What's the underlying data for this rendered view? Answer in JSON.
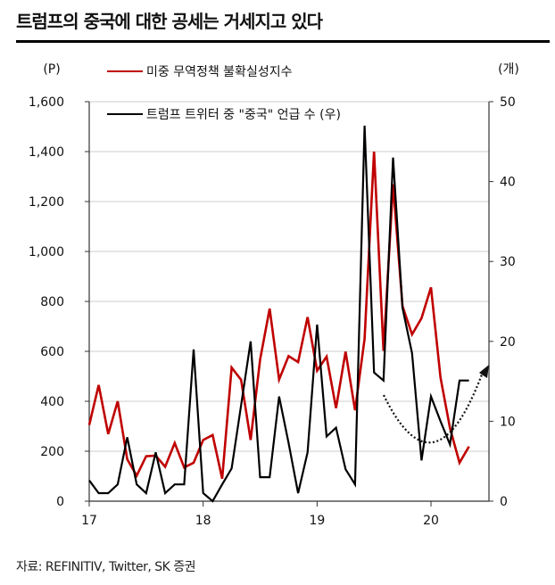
{
  "title": "트럼프의 중국에 대한 공세는 거세지고 있다",
  "source": "자료: REFINITIV, Twitter, SK 증권",
  "chart_data": {
    "type": "line",
    "title": "트럼프의 중국에 대한 공세는 거세지고 있다",
    "x": [
      "2017-01",
      "2017-02",
      "2017-03",
      "2017-04",
      "2017-05",
      "2017-06",
      "2017-07",
      "2017-08",
      "2017-09",
      "2017-10",
      "2017-11",
      "2017-12",
      "2018-01",
      "2018-02",
      "2018-03",
      "2018-04",
      "2018-05",
      "2018-06",
      "2018-07",
      "2018-08",
      "2018-09",
      "2018-10",
      "2018-11",
      "2018-12",
      "2019-01",
      "2019-02",
      "2019-03",
      "2019-04",
      "2019-05",
      "2019-06",
      "2019-07",
      "2019-08",
      "2019-09",
      "2019-10",
      "2019-11",
      "2019-12",
      "2020-01",
      "2020-02",
      "2020-03",
      "2020-04",
      "2020-05"
    ],
    "x_tick_labels": [
      "17",
      "18",
      "19",
      "20"
    ],
    "y_left": {
      "unit": "(P)",
      "ylim": [
        0,
        1600
      ],
      "ticks": [
        "0",
        "200",
        "400",
        "600",
        "800",
        "1,000",
        "1,200",
        "1,400",
        "1,600"
      ]
    },
    "y_right": {
      "unit": "(개)",
      "ylim": [
        0,
        50
      ],
      "ticks": [
        "0",
        "10",
        "20",
        "30",
        "40",
        "50"
      ]
    },
    "grid": true,
    "legend_placement": "top-left",
    "series": [
      {
        "name": "미중 무역정책 불확실성지수",
        "axis": "left",
        "color": "#c00000",
        "values": [
          305,
          465,
          269,
          400,
          168,
          102,
          180,
          182,
          138,
          233,
          135,
          154,
          245,
          265,
          90,
          535,
          486,
          245,
          567,
          771,
          487,
          581,
          557,
          737,
          523,
          579,
          373,
          599,
          364,
          650,
          1400,
          602,
          1269,
          781,
          668,
          733,
          856,
          495,
          293,
          154,
          219
        ]
      },
      {
        "name": "트럼프 트위터 중 \"중국\" 언급 수 (우)",
        "axis": "right",
        "color": "#000000",
        "values": [
          2.6,
          1,
          1,
          2.1,
          8,
          2.1,
          1,
          6.1,
          1,
          2.1,
          2.1,
          19,
          1,
          0,
          2.1,
          4.1,
          12,
          20,
          3,
          3,
          13.1,
          7.3,
          1,
          6.1,
          22.1,
          8.1,
          9.2,
          4,
          2.1,
          47,
          16.1,
          15.1,
          43,
          24.2,
          18.5,
          5.1,
          13.1,
          10,
          7.1,
          15.1,
          15.1
        ]
      }
    ],
    "annotation": "dotted U-shaped arrow pointing up"
  }
}
